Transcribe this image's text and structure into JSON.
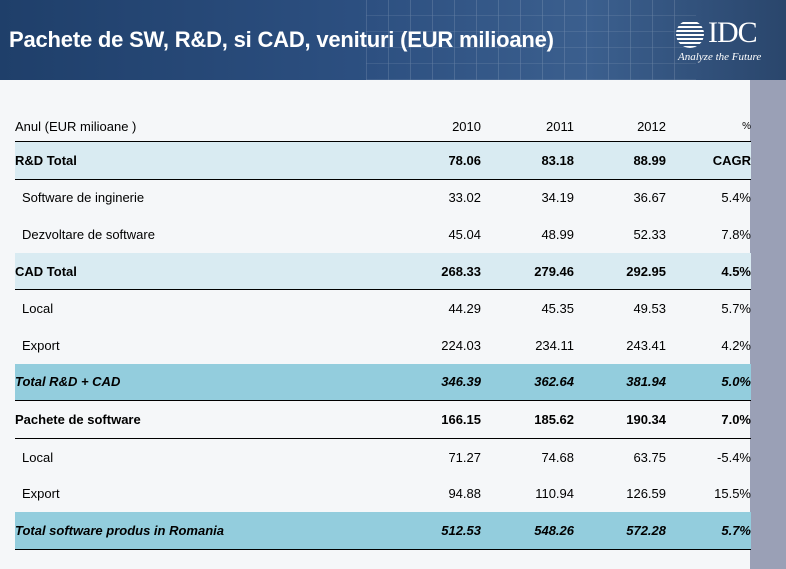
{
  "slide": {
    "title": "Pachete de SW, R&D, si CAD, venituri (EUR milioane)",
    "logo": {
      "brand": "IDC",
      "tagline": "Analyze the Future"
    }
  },
  "table": {
    "header": {
      "label": "Anul (EUR milioane )",
      "y2010": "2010",
      "y2011": "2011",
      "y2012": "2012",
      "pct": "%"
    },
    "rows": [
      {
        "label": "R&D Total",
        "v2010": "78.06",
        "v2011": "83.18",
        "v2012": "88.99",
        "pct": "CAGR"
      },
      {
        "label": "Software de inginerie",
        "v2010": "33.02",
        "v2011": "34.19",
        "v2012": "36.67",
        "pct": "5.4%"
      },
      {
        "label": "Dezvoltare de software",
        "v2010": "45.04",
        "v2011": "48.99",
        "v2012": "52.33",
        "pct": "7.8%"
      },
      {
        "label": "CAD Total",
        "v2010": "268.33",
        "v2011": "279.46",
        "v2012": "292.95",
        "pct": "4.5%"
      },
      {
        "label": "Local",
        "v2010": "44.29",
        "v2011": "45.35",
        "v2012": "49.53",
        "pct": "5.7%"
      },
      {
        "label": "Export",
        "v2010": "224.03",
        "v2011": "234.11",
        "v2012": "243.41",
        "pct": "4.2%"
      },
      {
        "label": "Total R&D + CAD",
        "v2010": "346.39",
        "v2011": "362.64",
        "v2012": "381.94",
        "pct": "5.0%"
      },
      {
        "label": "Pachete de software",
        "v2010": "166.15",
        "v2011": "185.62",
        "v2012": "190.34",
        "pct": "7.0%"
      },
      {
        "label": "Local",
        "v2010": "71.27",
        "v2011": "74.68",
        "v2012": "63.75",
        "pct": "-5.4%"
      },
      {
        "label": "Export",
        "v2010": "94.88",
        "v2011": "110.94",
        "v2012": "126.59",
        "pct": "15.5%"
      },
      {
        "label": "Total software produs in Romania",
        "v2010": "512.53",
        "v2011": "548.26",
        "v2012": "572.28",
        "pct": "5.7%"
      }
    ]
  },
  "colors": {
    "header_bg": "#2c4f80",
    "light_row": "#d9ebf2",
    "total_row": "#93cddd",
    "sidebar": "#9aa0b6"
  }
}
